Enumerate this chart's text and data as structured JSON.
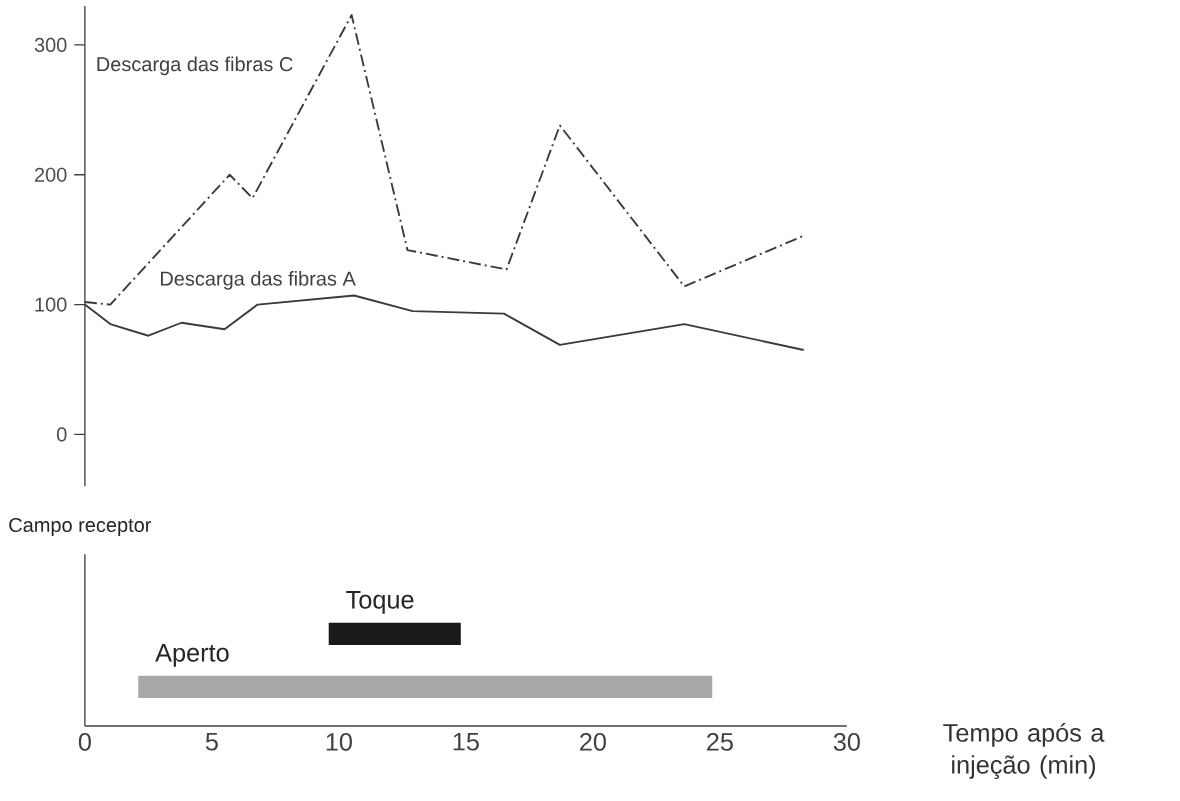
{
  "chart_data": [
    {
      "type": "line",
      "x": [
        0,
        1,
        2.5,
        3.8,
        5.5,
        6.8,
        10.6,
        12.9,
        16.5,
        18.7,
        23.6,
        28.3
      ],
      "xlim": [
        0,
        30
      ],
      "ylim": [
        -40,
        330
      ],
      "yticks": [
        0,
        100,
        200,
        300
      ],
      "tick_labels": "y",
      "series": [
        {
          "name": "Descarga das fibras C",
          "color": "#3a3a3a",
          "line_style": "dashdot",
          "x": [
            0,
            1,
            5.7,
            6.6,
            10.5,
            12.7,
            16.6,
            18.7,
            23.6,
            28.3
          ],
          "values": [
            102,
            100,
            200,
            182,
            323,
            142,
            127,
            238,
            114,
            153
          ]
        },
        {
          "name": "Descarga das fibras A",
          "color": "#3a3a3a",
          "line_style": "solid",
          "values": [
            100,
            85,
            76,
            86,
            81,
            100,
            107,
            95,
            93,
            69,
            85,
            65
          ]
        }
      ]
    },
    {
      "type": "bar",
      "orientation": "horizontal",
      "title": "Campo receptor",
      "categories": [
        "Toque",
        "Aperto"
      ],
      "base": [
        9.6,
        2.1
      ],
      "values": [
        5.2,
        22.6
      ],
      "colors": [
        "#1a1a1a",
        "#a8a8a8"
      ],
      "xlim": [
        0,
        30
      ],
      "xticks": [
        0,
        5,
        10,
        15,
        20,
        25,
        30
      ],
      "xlabel": "Tempo após a injeção (min)"
    }
  ]
}
